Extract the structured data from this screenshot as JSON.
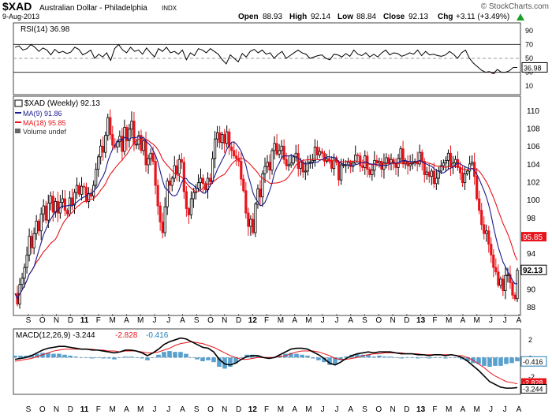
{
  "header": {
    "symbol": "$XAD",
    "name": "Australian Dollar - Philadelphia",
    "exchange": "INDX",
    "date": "9-Aug-2013",
    "open_label": "Open",
    "open": "88.93",
    "high_label": "High",
    "high": "92.14",
    "low_label": "Low",
    "low": "88.84",
    "close_label": "Close",
    "close": "92.13",
    "chg_label": "Chg",
    "chg": "+3.11 (+3.49%)",
    "arrow": "up-arrow-icon",
    "watermark": "© StockCharts.com"
  },
  "chart_data": [
    {
      "type": "line",
      "title": "RSI(14) 36.98",
      "series": [
        {
          "name": "RSI(14)",
          "color": "#000000"
        }
      ],
      "y_ticks": [
        90,
        70,
        50,
        30,
        10
      ],
      "ylim": [
        0,
        100
      ],
      "reference_lines": [
        70,
        50,
        30
      ],
      "last_value": "36.98",
      "values": [
        66,
        68,
        62,
        64,
        70,
        66,
        60,
        65,
        62,
        55,
        63,
        58,
        60,
        57,
        59,
        66,
        63,
        55,
        58,
        62,
        50,
        56,
        52,
        58,
        47,
        64,
        70,
        62,
        58,
        66,
        60,
        62,
        56,
        65,
        58,
        52,
        64,
        60,
        66,
        58,
        60,
        56,
        62,
        48,
        58,
        54,
        64,
        62,
        58,
        64,
        60,
        56,
        48,
        42,
        55,
        50,
        45,
        57,
        52,
        60,
        63,
        58,
        62,
        56,
        58,
        50,
        56,
        60,
        50,
        54,
        58,
        62,
        58,
        56,
        50,
        52,
        54,
        55,
        50,
        48,
        56,
        55,
        52,
        57,
        53,
        62,
        56,
        54,
        58,
        52,
        56,
        52,
        58,
        62,
        55,
        58,
        57,
        53,
        55,
        58,
        56,
        62,
        54,
        60,
        55,
        56,
        54,
        53,
        55,
        60,
        56,
        50,
        58,
        62,
        50,
        43,
        38,
        33,
        30,
        31,
        28,
        34,
        30,
        30,
        32,
        37,
        37
      ]
    },
    {
      "type": "line",
      "title": "$XAD (Weekly) 92.13",
      "legend": [
        {
          "label": "$XAD (Weekly) 92.13",
          "color": "#000000"
        },
        {
          "label": "MA(9) 91.86",
          "color": "#1a1a8c"
        },
        {
          "label": "MA(18) 95.85",
          "color": "#e8141b"
        },
        {
          "label": "Volume undef",
          "color": "#666666"
        }
      ],
      "x_labels": [
        "S",
        "O",
        "N",
        "D",
        "11",
        "F",
        "M",
        "A",
        "M",
        "J",
        "J",
        "A",
        "S",
        "O",
        "N",
        "D",
        "12",
        "F",
        "M",
        "A",
        "M",
        "J",
        "J",
        "A",
        "S",
        "O",
        "N",
        "D",
        "13",
        "F",
        "M",
        "A",
        "M",
        "J",
        "J",
        "A"
      ],
      "y_ticks": [
        88,
        90,
        92,
        94,
        96,
        98,
        100,
        102,
        104,
        106,
        108,
        110
      ],
      "ylim": [
        87.2,
        111.5
      ],
      "series": [
        {
          "name": "$XAD (Weekly)",
          "color": "#000000"
        },
        {
          "name": "MA(9)",
          "color": "#1a1a8c"
        },
        {
          "name": "MA(18)",
          "color": "#e8141b"
        }
      ],
      "closes": [
        89.5,
        88.3,
        90.5,
        91.2,
        92.4,
        93.8,
        95.9,
        94.6,
        96.2,
        97.6,
        96.5,
        98.4,
        99.3,
        97.7,
        99.6,
        100.4,
        98.6,
        99.8,
        98.5,
        99.7,
        100.1,
        98.8,
        98.4,
        100.2,
        99.4,
        100.8,
        101.6,
        100.6,
        101.5,
        101.4,
        99.8,
        100.7,
        100.4,
        101.6,
        103.4,
        104.8,
        106.0,
        105.3,
        107.2,
        109.2,
        107.3,
        106.1,
        105.9,
        106.5,
        107.1,
        105.4,
        108.1,
        106.6,
        107.9,
        108.8,
        106.2,
        106.2,
        107.2,
        105.5,
        106.6,
        103.9,
        104.6,
        105.2,
        104.3,
        101.6,
        99.3,
        97.5,
        96.3,
        99.2,
        102.1,
        101.6,
        102.4,
        103.8,
        102.9,
        104.5,
        104.2,
        100.9,
        99.0,
        98.3,
        100.1,
        100.8,
        101.3,
        101.9,
        102.4,
        101.8,
        101.1,
        102.4,
        102.0,
        104.6,
        106.8,
        107.5,
        106.4,
        107.3,
        106.3,
        107.6,
        105.9,
        105.5,
        104.9,
        104.6,
        104.3,
        102.3,
        101.0,
        98.5,
        97.0,
        97.8,
        96.3,
        99.5,
        101.2,
        100.3,
        102.9,
        103.7,
        104.2,
        103.3,
        105.5,
        106.3,
        105.1,
        105.5,
        106.0,
        104.5,
        103.8,
        103.9,
        104.1,
        104.8,
        105.2,
        103.5,
        104.2,
        103.1,
        103.2,
        104.2,
        104.2,
        104.4,
        105.9,
        105.0,
        105.4,
        105.2,
        104.3,
        104.6,
        104.3,
        103.5,
        104.7,
        104.2,
        102.2,
        103.9,
        103.9,
        103.9,
        104.2,
        103.7,
        104.1,
        105.0,
        104.9,
        103.8,
        103.6,
        104.9,
        103.4,
        102.8,
        103.3,
        104.4,
        104.1,
        104.3,
        103.4,
        104.1,
        104.7,
        104.1,
        104.5,
        104.0,
        103.6,
        104.6,
        105.7,
        104.0,
        104.3,
        103.8,
        104.0,
        104.1,
        104.3,
        104.0,
        105.3,
        104.3,
        102.8,
        103.1,
        102.6,
        103.2,
        101.8,
        102.4,
        103.2,
        103.8,
        104.1,
        104.4,
        105.2,
        103.7,
        104.1,
        104.5,
        103.6,
        103.0,
        101.9,
        102.9,
        103.2,
        104.0,
        104.2,
        102.6,
        100.1,
        98.8,
        97.2,
        96.2,
        96.5,
        95.0,
        93.8,
        92.4,
        91.9,
        90.4,
        91.1,
        89.8,
        91.5,
        91.6,
        90.7,
        89.3,
        88.9,
        92.1
      ]
    },
    {
      "type": "line",
      "title": "MACD(12,26,9) -3.244, -2.828, -0.416",
      "legend": [
        {
          "label": "MACD(12,26,9) -3.244",
          "color": "#000000"
        },
        {
          "label": "-2.828",
          "color": "#e8141b"
        },
        {
          "label": "-0.416",
          "color": "#1d7eb7"
        }
      ],
      "y_ticks": [
        2,
        0,
        -2
      ],
      "ylim": [
        -3.8,
        3.0
      ],
      "last_values": [
        "-0.416",
        "-2.828",
        "-3.244"
      ],
      "macd": [
        -0.2,
        -0.1,
        0.0,
        0.2,
        0.5,
        0.8,
        1.0,
        1.1,
        1.2,
        1.2,
        1.1,
        1.0,
        0.9,
        0.9,
        0.8,
        0.8,
        0.7,
        0.6,
        0.5,
        0.6,
        0.8,
        0.8,
        0.7,
        0.5,
        0.2,
        0.5,
        0.9,
        1.4,
        1.7,
        1.9,
        2.1,
        2.0,
        1.7,
        1.4,
        1.1,
        1.0,
        0.6,
        -0.2,
        -0.7,
        -0.8,
        -0.6,
        -0.2,
        0.1,
        0.2,
        0.2,
        0.0,
        -0.1,
        0.0,
        0.3,
        0.6,
        0.9,
        1.0,
        1.0,
        0.9,
        0.6,
        0.3,
        -0.1,
        -0.6,
        -0.8,
        -0.5,
        -0.1,
        0.2,
        0.4,
        0.5,
        0.6,
        0.5,
        0.6,
        0.6,
        0.6,
        0.5,
        0.4,
        0.4,
        0.4,
        0.3,
        0.3,
        0.2,
        0.3,
        0.3,
        0.2,
        0.3,
        0.2,
        0.0,
        -0.4,
        -0.9,
        -1.4,
        -2.0,
        -2.6,
        -2.9,
        -3.2,
        -3.3,
        -3.3,
        -3.24
      ],
      "signal": [
        -0.4,
        -0.3,
        -0.2,
        -0.1,
        0.1,
        0.3,
        0.5,
        0.7,
        0.8,
        0.9,
        0.9,
        0.9,
        0.9,
        0.9,
        0.9,
        0.8,
        0.8,
        0.7,
        0.7,
        0.6,
        0.7,
        0.7,
        0.7,
        0.6,
        0.5,
        0.5,
        0.6,
        0.8,
        1.0,
        1.3,
        1.5,
        1.6,
        1.7,
        1.6,
        1.5,
        1.3,
        1.1,
        0.8,
        0.5,
        0.2,
        0.0,
        -0.2,
        -0.2,
        -0.1,
        0.0,
        0.0,
        0.0,
        0.0,
        0.1,
        0.2,
        0.4,
        0.6,
        0.7,
        0.7,
        0.7,
        0.6,
        0.4,
        0.2,
        -0.1,
        -0.2,
        -0.2,
        -0.1,
        0.0,
        0.2,
        0.3,
        0.4,
        0.4,
        0.5,
        0.5,
        0.5,
        0.5,
        0.4,
        0.4,
        0.4,
        0.3,
        0.3,
        0.3,
        0.3,
        0.3,
        0.3,
        0.2,
        0.2,
        0.0,
        -0.3,
        -0.7,
        -1.1,
        -1.6,
        -2.0,
        -2.3,
        -2.6,
        -2.7,
        -2.83
      ]
    }
  ]
}
